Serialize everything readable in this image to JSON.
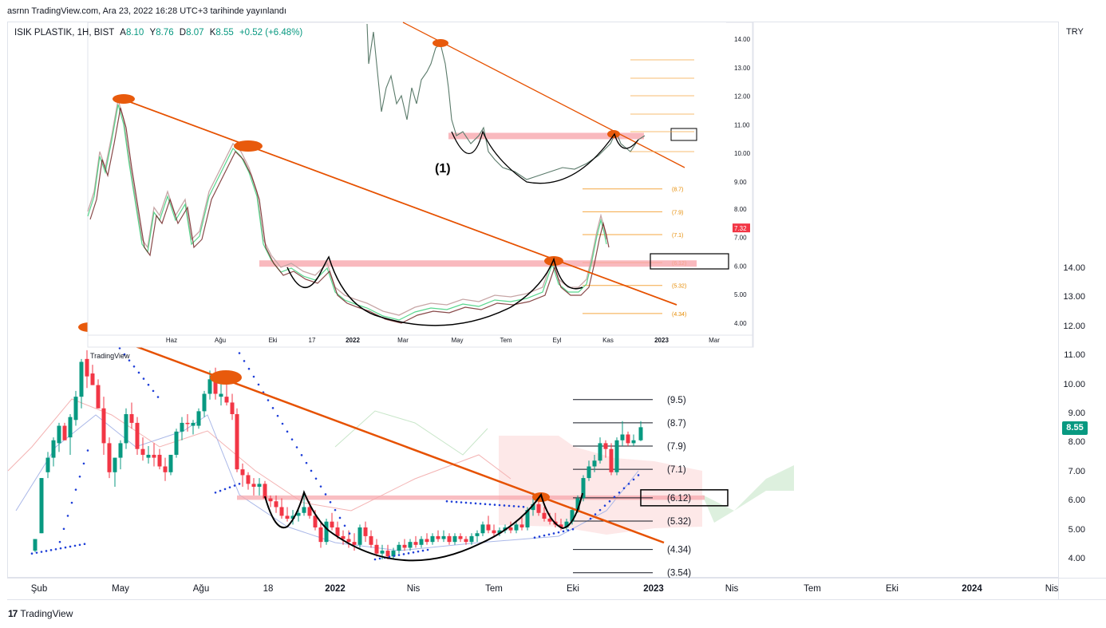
{
  "header": {
    "published_text": "asrnn TradingView.com, Ara 23, 2022 16:28 UTC+3 tarihinde yayınlandı"
  },
  "legend": {
    "symbol": "ISIK PLASTIK, 1H, BIST",
    "open_label": "A",
    "open": "8.10",
    "high_label": "Y",
    "high": "8.76",
    "low_label": "D",
    "low": "8.07",
    "close_label": "K",
    "close": "8.55",
    "change": "+0.52 (+6.48%)"
  },
  "currency": "TRY",
  "last_price": "8.55",
  "colors": {
    "up": "#089981",
    "down": "#f23645",
    "trendline": "#e65100",
    "resistance_zone": "#f7a8ae",
    "ellipse": "#e85a0c"
  },
  "chart_data": [
    {
      "type": "candlestick",
      "title": "",
      "y_ticks": [
        "14.00",
        "13.00",
        "12.00",
        "11.00",
        "10.00",
        "9.00",
        "8.00",
        "7.00",
        "6.00",
        "5.00",
        "4.00"
      ],
      "x_ticks": [
        "Şub",
        "May",
        "Ağu",
        "18",
        "2022",
        "Nis",
        "Tem",
        "Eki",
        "2023",
        "Nis",
        "Tem",
        "Eki",
        "2024",
        "Nis"
      ],
      "x_ticks_bold": [
        "2022",
        "2023",
        "2024"
      ],
      "fib_levels": [
        9.5,
        8.7,
        7.9,
        7.1,
        6.12,
        5.32,
        4.34,
        3.54
      ],
      "fib_labels": [
        "(9.5)",
        "(8.7)",
        "(7.9)",
        "(7.1)",
        "(6.12)",
        "(5.32)",
        "(4.34)",
        "(3.54)"
      ],
      "highlighted_level": "(6.12)",
      "resistance_zone": [
        6.05,
        6.2
      ],
      "annotations": [
        "descending trendline",
        "cup and handle",
        "inverse head and shoulders"
      ],
      "watermark": "TradingView"
    },
    {
      "type": "candlestick",
      "title": "",
      "x_ticks": [
        "Haz",
        "Ağu",
        "Eki",
        "17",
        "2022",
        "Mar",
        "May",
        "Tem",
        "Eyl",
        "Kas",
        "2023",
        "Mar"
      ],
      "x_ticks_bold": [
        "2022",
        "2023"
      ],
      "y_ticks": [
        "8.00",
        "7.00",
        "6.00",
        "5.00",
        "4.00"
      ],
      "fib_labels": [
        "(8.7)",
        "(7.9)",
        "(7.1)",
        "(6.12)",
        "(5.32)",
        "(4.34)"
      ],
      "last_price": "7.32"
    },
    {
      "type": "candlestick",
      "title": "",
      "label": "(1)",
      "y_ticks": [
        "14.00",
        "13.00",
        "12.00",
        "11.00",
        "10.00",
        "9.00"
      ]
    }
  ]
}
